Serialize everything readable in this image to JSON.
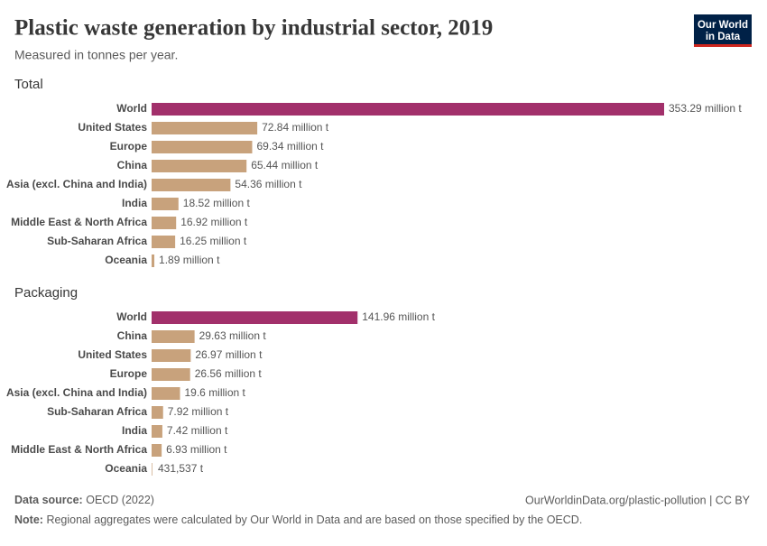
{
  "header": {
    "title": "Plastic waste generation by industrial sector, 2019",
    "subtitle": "Measured in tonnes per year.",
    "logo": [
      "Our World",
      "in Data"
    ]
  },
  "chart_data": [
    {
      "type": "bar",
      "orientation": "horizontal",
      "title": "Total",
      "categories": [
        "World",
        "United States",
        "Europe",
        "China",
        "Asia (excl. China and India)",
        "India",
        "Middle East & North Africa",
        "Sub-Saharan Africa",
        "Oceania"
      ],
      "values": [
        353290000,
        72840000,
        69340000,
        65440000,
        54360000,
        18520000,
        16920000,
        16250000,
        1890000
      ],
      "value_labels": [
        "353.29 million t",
        "72.84 million t",
        "69.34 million t",
        "65.44 million t",
        "54.36 million t",
        "18.52 million t",
        "16.92 million t",
        "16.25 million t",
        "1.89 million t"
      ],
      "colors": [
        "#a2306b",
        "#c8a27c",
        "#c8a27c",
        "#c8a27c",
        "#c8a27c",
        "#c8a27c",
        "#c8a27c",
        "#c8a27c",
        "#c8a27c"
      ]
    },
    {
      "type": "bar",
      "orientation": "horizontal",
      "title": "Packaging",
      "categories": [
        "World",
        "China",
        "United States",
        "Europe",
        "Asia (excl. China and India)",
        "Sub-Saharan Africa",
        "India",
        "Middle East & North Africa",
        "Oceania"
      ],
      "values": [
        141960000,
        29630000,
        26970000,
        26560000,
        19600000,
        7920000,
        7420000,
        6930000,
        431537
      ],
      "value_labels": [
        "141.96 million t",
        "29.63 million t",
        "26.97 million t",
        "26.56 million t",
        "19.6 million t",
        "7.92 million t",
        "7.42 million t",
        "6.93 million t",
        "431,537 t"
      ],
      "colors": [
        "#a2306b",
        "#c8a27c",
        "#c8a27c",
        "#c8a27c",
        "#c8a27c",
        "#c8a27c",
        "#c8a27c",
        "#c8a27c",
        "#c8a27c"
      ]
    }
  ],
  "footer": {
    "source_label": "Data source:",
    "source": "OECD (2022)",
    "url": "OurWorldinData.org/plastic-pollution | CC BY",
    "note_label": "Note:",
    "note": "Regional aggregates were calculated by Our World in Data and are based on those specified by the OECD."
  }
}
